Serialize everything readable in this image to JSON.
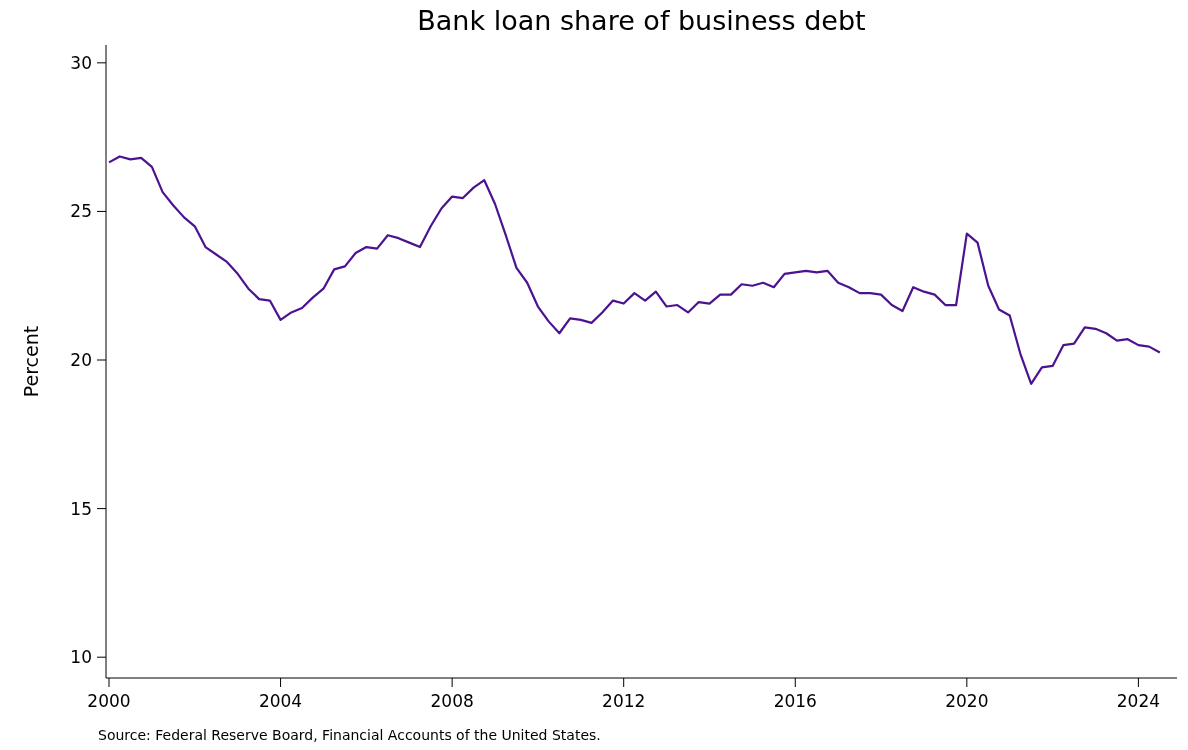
{
  "chart_data": {
    "type": "line",
    "title": "Bank loan share of business debt",
    "ylabel": "Percent",
    "annotations": [
      "Source: Federal Reserve Board, Financial Accounts of the United States."
    ],
    "x": [
      2000,
      2000.25,
      2000.5,
      2000.75,
      2001,
      2001.25,
      2001.5,
      2001.75,
      2002,
      2002.25,
      2002.5,
      2002.75,
      2003,
      2003.25,
      2003.5,
      2003.75,
      2004,
      2004.25,
      2004.5,
      2004.75,
      2005,
      2005.25,
      2005.5,
      2005.75,
      2006,
      2006.25,
      2006.5,
      2006.75,
      2007,
      2007.25,
      2007.5,
      2007.75,
      2008,
      2008.25,
      2008.5,
      2008.75,
      2009,
      2009.25,
      2009.5,
      2009.75,
      2010,
      2010.25,
      2010.5,
      2010.75,
      2011,
      2011.25,
      2011.5,
      2011.75,
      2012,
      2012.25,
      2012.5,
      2012.75,
      2013,
      2013.25,
      2013.5,
      2013.75,
      2014,
      2014.25,
      2014.5,
      2014.75,
      2015,
      2015.25,
      2015.5,
      2015.75,
      2016,
      2016.25,
      2016.5,
      2016.75,
      2017,
      2017.25,
      2017.5,
      2017.75,
      2018,
      2018.25,
      2018.5,
      2018.75,
      2019,
      2019.25,
      2019.5,
      2019.75,
      2020,
      2020.25,
      2020.5,
      2020.75,
      2021,
      2021.25,
      2021.5,
      2021.75,
      2022,
      2022.25,
      2022.5,
      2022.75,
      2023,
      2023.25,
      2023.5,
      2023.75,
      2024,
      2024.25,
      2024.5
    ],
    "series": [
      {
        "color": "#4c1391",
        "values": [
          26.65,
          26.85,
          26.75,
          26.8,
          26.5,
          25.65,
          25.2,
          24.8,
          24.5,
          23.8,
          23.55,
          23.3,
          22.9,
          22.4,
          22.05,
          22.0,
          21.35,
          21.6,
          21.75,
          22.1,
          22.4,
          23.05,
          23.15,
          23.6,
          23.8,
          23.75,
          24.2,
          24.1,
          23.95,
          23.8,
          24.5,
          25.1,
          25.5,
          25.45,
          25.8,
          26.05,
          25.25,
          24.2,
          23.1,
          22.6,
          21.8,
          21.3,
          20.9,
          21.4,
          21.35,
          21.25,
          21.6,
          22.0,
          21.9,
          22.25,
          22.0,
          22.3,
          21.8,
          21.85,
          21.6,
          21.95,
          21.9,
          22.2,
          22.2,
          22.55,
          22.5,
          22.6,
          22.45,
          22.9,
          22.95,
          23.0,
          22.95,
          23.0,
          22.6,
          22.45,
          22.25,
          22.25,
          22.2,
          21.85,
          21.65,
          22.45,
          22.3,
          22.2,
          21.85,
          21.85,
          24.25,
          23.95,
          22.5,
          21.7,
          21.5,
          20.2,
          19.2,
          19.75,
          19.8,
          20.5,
          20.55,
          21.1,
          21.05,
          20.9,
          20.65,
          20.7,
          20.5,
          20.45,
          20.25
        ]
      }
    ],
    "xlim": [
      1999.93,
      2024.9
    ],
    "xticks": [
      2000,
      2004,
      2008,
      2012,
      2016,
      2020,
      2024
    ],
    "ylim": [
      9.3,
      30.6
    ],
    "yticks": [
      10,
      15,
      20,
      25,
      30
    ],
    "grid": false
  }
}
